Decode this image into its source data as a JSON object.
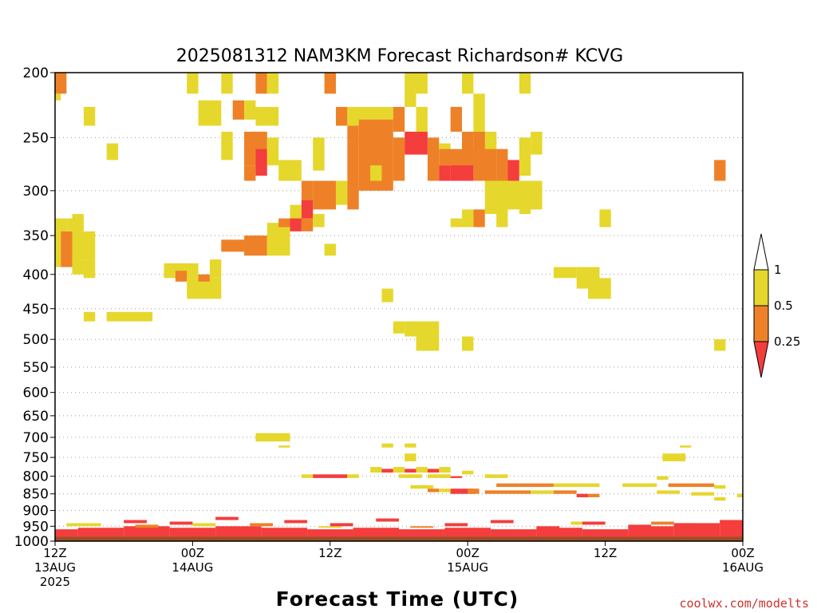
{
  "chart_data": {
    "type": "heatmap",
    "title": "2025081312 NAM3KM Forecast Richardson# KCVG",
    "xlabel": "Forecast Time (UTC)",
    "ylabel": "",
    "credit": "coolwx.com/modelts",
    "y_scale": "log",
    "ylim": [
      1000,
      200
    ],
    "x_range_hours": [
      0,
      60
    ],
    "yticks": [
      200,
      250,
      300,
      350,
      400,
      450,
      500,
      550,
      600,
      650,
      700,
      750,
      800,
      850,
      900,
      950,
      1000
    ],
    "xticks": [
      {
        "hour": 0,
        "lines": [
          "12Z",
          "13AUG",
          "2025"
        ]
      },
      {
        "hour": 12,
        "lines": [
          "00Z",
          "14AUG"
        ]
      },
      {
        "hour": 24,
        "lines": [
          "12Z"
        ]
      },
      {
        "hour": 36,
        "lines": [
          "00Z",
          "15AUG"
        ]
      },
      {
        "hour": 48,
        "lines": [
          "12Z"
        ]
      },
      {
        "hour": 60,
        "lines": [
          "00Z",
          "16AUG"
        ]
      }
    ],
    "grid": "dotted horizontal at each pressure tick",
    "legend": {
      "position": "right",
      "labels": [
        "1",
        "0.5",
        "0.25"
      ],
      "bins": [
        {
          "range": "0.5-1",
          "color": "#e6d72c"
        },
        {
          "range": "0.25-0.5",
          "color": "#ee8128"
        },
        {
          "range": "<0.25",
          "color": "#f43d3d"
        }
      ]
    },
    "colors": {
      "ri_lt_025": "#f43d3d",
      "ri_025_05": "#ee8128",
      "ri_05_1": "#e6d72c",
      "ground": "#9b4f27"
    },
    "ground_pressure_hpa": 985,
    "cells": [
      [
        0,
        1,
        200,
        215,
        2
      ],
      [
        0,
        0.5,
        215,
        220,
        1
      ],
      [
        0,
        1,
        330,
        345,
        1
      ],
      [
        0,
        0.5,
        345,
        390,
        1
      ],
      [
        0.5,
        1.5,
        345,
        390,
        2
      ],
      [
        1.5,
        2,
        345,
        390,
        1
      ],
      [
        1,
        2,
        330,
        345,
        1
      ],
      [
        1.5,
        2.5,
        325,
        345,
        1
      ],
      [
        1.5,
        3.5,
        345,
        380,
        1
      ],
      [
        1.5,
        2.5,
        380,
        400,
        1
      ],
      [
        2.5,
        3.5,
        380,
        405,
        1
      ],
      [
        2.5,
        3.5,
        225,
        240,
        1
      ],
      [
        4.5,
        5.5,
        255,
        270,
        1
      ],
      [
        2.5,
        3.5,
        455,
        470,
        1
      ],
      [
        4.5,
        8.5,
        455,
        470,
        1
      ],
      [
        9.5,
        12.5,
        385,
        405,
        1
      ],
      [
        10.5,
        11.5,
        395,
        410,
        2
      ],
      [
        11.5,
        14.5,
        405,
        435,
        1
      ],
      [
        12.5,
        13.5,
        400,
        410,
        2
      ],
      [
        13.5,
        14.5,
        380,
        405,
        1
      ],
      [
        11.5,
        12.5,
        200,
        215,
        1
      ],
      [
        12.5,
        14.5,
        220,
        240,
        1
      ],
      [
        14.5,
        15.5,
        200,
        215,
        1
      ],
      [
        14.5,
        15.5,
        245,
        270,
        1
      ],
      [
        15.5,
        16.5,
        220,
        235,
        2
      ],
      [
        16.5,
        17.5,
        220,
        235,
        1
      ],
      [
        17.5,
        18.5,
        200,
        215,
        2
      ],
      [
        18.5,
        19.5,
        200,
        215,
        1
      ],
      [
        17.5,
        19.5,
        225,
        240,
        1
      ],
      [
        16.5,
        18.5,
        245,
        275,
        2
      ],
      [
        17.5,
        18.5,
        260,
        285,
        3
      ],
      [
        16.5,
        17.5,
        275,
        290,
        2
      ],
      [
        18.5,
        19.5,
        250,
        275,
        1
      ],
      [
        19.5,
        21.5,
        270,
        290,
        1
      ],
      [
        14.5,
        16.5,
        355,
        370,
        2
      ],
      [
        16.5,
        18.5,
        350,
        375,
        2
      ],
      [
        18.5,
        20.5,
        335,
        375,
        1
      ],
      [
        19.5,
        20.5,
        330,
        340,
        2
      ],
      [
        20.5,
        21.5,
        315,
        335,
        1
      ],
      [
        20.5,
        21.5,
        330,
        345,
        3
      ],
      [
        21.5,
        22.5,
        290,
        315,
        2
      ],
      [
        21.5,
        22.5,
        310,
        330,
        3
      ],
      [
        22.5,
        24.5,
        290,
        320,
        2
      ],
      [
        21.5,
        22.5,
        330,
        345,
        2
      ],
      [
        22.5,
        23.5,
        325,
        340,
        1
      ],
      [
        23.5,
        24.5,
        360,
        375,
        1
      ],
      [
        22.5,
        23.5,
        250,
        280,
        1
      ],
      [
        23.5,
        24.5,
        200,
        215,
        2
      ],
      [
        24.5,
        25.5,
        225,
        240,
        2
      ],
      [
        24.5,
        25.5,
        290,
        315,
        1
      ],
      [
        25.5,
        29.5,
        225,
        240,
        1
      ],
      [
        25.5,
        26.5,
        240,
        320,
        2
      ],
      [
        26.5,
        29.5,
        235,
        300,
        2
      ],
      [
        27.5,
        28.5,
        275,
        290,
        1
      ],
      [
        29.5,
        30.5,
        250,
        290,
        2
      ],
      [
        30.5,
        32.5,
        245,
        265,
        3
      ],
      [
        32.5,
        33.5,
        250,
        290,
        2
      ],
      [
        29.5,
        30.5,
        225,
        245,
        2
      ],
      [
        30.5,
        31.5,
        200,
        225,
        1
      ],
      [
        31.5,
        32.5,
        200,
        215,
        1
      ],
      [
        31.5,
        32.5,
        225,
        245,
        1
      ],
      [
        33.5,
        34.5,
        255,
        275,
        1
      ],
      [
        33.5,
        34.5,
        275,
        290,
        3
      ],
      [
        34.5,
        36.5,
        270,
        290,
        3
      ],
      [
        33.5,
        36.5,
        260,
        275,
        2
      ],
      [
        34.5,
        35.5,
        225,
        245,
        2
      ],
      [
        35.5,
        36.5,
        245,
        270,
        2
      ],
      [
        36.5,
        38.5,
        245,
        290,
        2
      ],
      [
        35.5,
        36.5,
        200,
        215,
        1
      ],
      [
        36.5,
        37.5,
        215,
        245,
        1
      ],
      [
        37.5,
        38.5,
        245,
        260,
        1
      ],
      [
        38.5,
        39.5,
        260,
        290,
        2
      ],
      [
        39.5,
        40.5,
        270,
        290,
        3
      ],
      [
        40.5,
        41.5,
        250,
        285,
        1
      ],
      [
        37.5,
        39.5,
        290,
        325,
        1
      ],
      [
        39.5,
        42.5,
        290,
        320,
        1
      ],
      [
        40.5,
        41.5,
        320,
        325,
        1
      ],
      [
        40.5,
        41.5,
        200,
        215,
        1
      ],
      [
        41.5,
        42.5,
        245,
        265,
        1
      ],
      [
        34.5,
        35.5,
        330,
        340,
        1
      ],
      [
        35.5,
        36.5,
        320,
        340,
        1
      ],
      [
        36.5,
        37.5,
        320,
        340,
        2
      ],
      [
        38.5,
        39.5,
        320,
        340,
        1
      ],
      [
        43.5,
        45.5,
        390,
        405,
        1
      ],
      [
        45.5,
        47.5,
        390,
        420,
        1
      ],
      [
        46.5,
        48.5,
        405,
        435,
        1
      ],
      [
        47.5,
        48.5,
        320,
        340,
        1
      ],
      [
        28.5,
        29.5,
        420,
        440,
        1
      ],
      [
        29.5,
        30.5,
        470,
        490,
        1
      ],
      [
        30.5,
        33.5,
        470,
        495,
        1
      ],
      [
        31.5,
        33.5,
        495,
        520,
        1
      ],
      [
        35.5,
        36.5,
        495,
        520,
        1
      ],
      [
        57.5,
        58.5,
        270,
        290,
        2
      ],
      [
        57.5,
        58.5,
        500,
        520,
        1
      ],
      [
        17.5,
        20.5,
        690,
        710,
        1
      ],
      [
        19.5,
        20.5,
        720,
        725,
        1
      ],
      [
        28.5,
        29.5,
        715,
        725,
        1
      ],
      [
        30.5,
        31.5,
        715,
        725,
        1
      ],
      [
        30.5,
        31.5,
        740,
        760,
        1
      ],
      [
        53,
        55,
        740,
        760,
        1
      ],
      [
        54.5,
        55.5,
        720,
        725,
        1
      ],
      [
        21.5,
        22.5,
        795,
        805,
        1
      ],
      [
        22.5,
        25.5,
        795,
        805,
        3
      ],
      [
        25.5,
        26.5,
        795,
        805,
        1
      ],
      [
        27.5,
        28.5,
        775,
        790,
        1
      ],
      [
        28.5,
        29.5,
        780,
        790,
        3
      ],
      [
        29.5,
        30.5,
        775,
        790,
        1
      ],
      [
        30.5,
        31.5,
        780,
        790,
        3
      ],
      [
        31.5,
        32.5,
        775,
        790,
        1
      ],
      [
        32.5,
        33.5,
        780,
        790,
        3
      ],
      [
        33.5,
        34.5,
        775,
        790,
        1
      ],
      [
        30,
        32,
        795,
        805,
        1
      ],
      [
        32.5,
        34.5,
        795,
        805,
        1
      ],
      [
        34.5,
        35.5,
        800,
        805,
        3
      ],
      [
        35.5,
        36.5,
        785,
        795,
        1
      ],
      [
        37.5,
        38.5,
        795,
        805,
        1
      ],
      [
        38.5,
        39.5,
        795,
        805,
        1
      ],
      [
        31,
        33,
        825,
        835,
        1
      ],
      [
        32.5,
        33.5,
        835,
        845,
        2
      ],
      [
        33.5,
        34.5,
        835,
        845,
        1
      ],
      [
        34.5,
        36.5,
        835,
        850,
        3
      ],
      [
        36,
        37,
        835,
        850,
        2
      ],
      [
        38.5,
        40.5,
        820,
        830,
        2
      ],
      [
        40.5,
        43.5,
        820,
        830,
        2
      ],
      [
        43.5,
        46.5,
        820,
        830,
        1
      ],
      [
        46.5,
        47.5,
        820,
        830,
        1
      ],
      [
        37.5,
        41.5,
        840,
        850,
        2
      ],
      [
        41.5,
        43.5,
        840,
        850,
        1
      ],
      [
        43.5,
        45.5,
        840,
        850,
        2
      ],
      [
        45.5,
        46.5,
        850,
        860,
        3
      ],
      [
        46.5,
        47.5,
        850,
        860,
        2
      ],
      [
        49.5,
        51.5,
        820,
        830,
        1
      ],
      [
        51.5,
        52.5,
        820,
        830,
        1
      ],
      [
        52.5,
        53.5,
        800,
        810,
        1
      ],
      [
        53.5,
        54.5,
        820,
        830,
        2
      ],
      [
        54.5,
        57.5,
        820,
        830,
        2
      ],
      [
        57.5,
        58.5,
        825,
        835,
        1
      ],
      [
        52.5,
        54.5,
        840,
        850,
        1
      ],
      [
        55.5,
        57.5,
        845,
        855,
        1
      ],
      [
        57.5,
        58.5,
        860,
        870,
        1
      ],
      [
        59.5,
        60,
        850,
        860,
        1
      ],
      [
        6,
        8,
        930,
        940,
        3
      ],
      [
        10,
        12,
        935,
        945,
        3
      ],
      [
        14,
        16,
        920,
        930,
        3
      ],
      [
        20,
        22,
        930,
        940,
        3
      ],
      [
        24,
        26,
        940,
        950,
        3
      ],
      [
        28,
        30,
        925,
        935,
        3
      ],
      [
        34,
        36,
        940,
        950,
        3
      ],
      [
        38,
        40,
        930,
        940,
        3
      ],
      [
        42,
        44,
        950,
        960,
        3
      ],
      [
        46,
        48,
        935,
        945,
        3
      ],
      [
        50,
        52,
        945,
        955,
        3
      ],
      [
        54,
        56,
        940,
        950,
        3
      ],
      [
        58,
        60,
        930,
        940,
        3
      ]
    ],
    "lower_bands": [
      [
        0,
        2,
        960,
        985,
        3
      ],
      [
        2,
        6,
        955,
        985,
        3
      ],
      [
        6,
        10,
        950,
        985,
        3
      ],
      [
        10,
        14,
        955,
        985,
        3
      ],
      [
        14,
        18,
        950,
        985,
        3
      ],
      [
        18,
        22,
        955,
        985,
        3
      ],
      [
        22,
        26,
        960,
        985,
        3
      ],
      [
        26,
        30,
        955,
        985,
        3
      ],
      [
        30,
        34,
        960,
        985,
        3
      ],
      [
        34,
        38,
        955,
        985,
        3
      ],
      [
        38,
        42,
        960,
        985,
        3
      ],
      [
        42,
        46,
        955,
        985,
        3
      ],
      [
        46,
        50,
        960,
        985,
        3
      ],
      [
        50,
        54,
        950,
        985,
        3
      ],
      [
        54,
        58,
        940,
        985,
        3
      ],
      [
        58,
        60,
        930,
        985,
        3
      ],
      [
        1,
        4,
        940,
        950,
        1
      ],
      [
        7,
        9,
        945,
        955,
        2
      ],
      [
        12,
        14,
        940,
        950,
        1
      ],
      [
        17,
        19,
        940,
        950,
        2
      ],
      [
        23,
        25,
        950,
        955,
        1
      ],
      [
        31,
        33,
        950,
        955,
        2
      ],
      [
        45,
        47,
        935,
        945,
        1
      ],
      [
        52,
        54,
        935,
        945,
        2
      ]
    ]
  }
}
